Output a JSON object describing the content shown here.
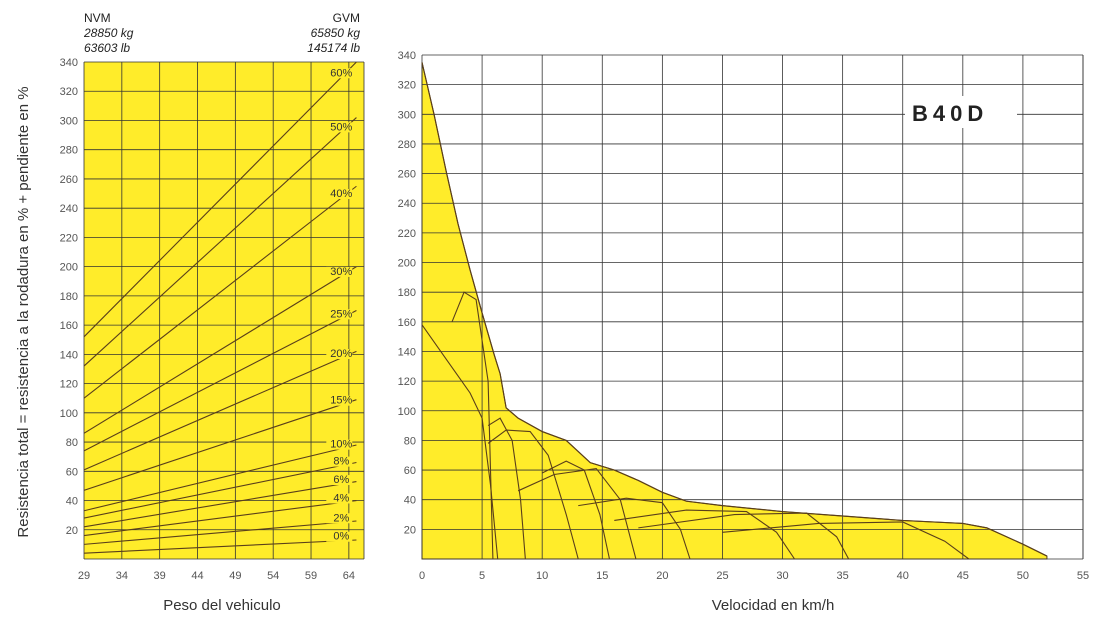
{
  "y_axis_label": "Resistencia total = resistencia a la rodadura en % + pendiente en %",
  "nvm": {
    "label": "NVM",
    "kg": "28850 kg",
    "lb": "63603 lb"
  },
  "gvm": {
    "label": "GVM",
    "kg": "65850 kg",
    "lb": "145174 lb"
  },
  "model": "B40D",
  "colors": {
    "fill": "#ffec2a",
    "line": "#5a3f1a",
    "grid": "#333333",
    "ink": "#333333"
  },
  "chart_data": [
    {
      "type": "line",
      "xlabel": "Peso del vehiculo",
      "ylabel": "Resistencia total = resistencia a la rodadura en % + pendiente en %",
      "xlim": [
        29,
        66
      ],
      "ylim": [
        0,
        340
      ],
      "x_ticks": [
        "29",
        "34",
        "39",
        "44",
        "49",
        "54",
        "59",
        "64"
      ],
      "y_ticks": [
        "20",
        "40",
        "60",
        "80",
        "100",
        "120",
        "140",
        "160",
        "180",
        "200",
        "220",
        "240",
        "260",
        "280",
        "300",
        "320",
        "340"
      ],
      "background": "yellow",
      "grid": true,
      "series": [
        {
          "name": "60%",
          "x": [
            29,
            65
          ],
          "y": [
            152,
            340
          ]
        },
        {
          "name": "50%",
          "x": [
            29,
            65
          ],
          "y": [
            132,
            302
          ]
        },
        {
          "name": "40%",
          "x": [
            29,
            65
          ],
          "y": [
            110,
            255
          ]
        },
        {
          "name": "30%",
          "x": [
            29,
            65
          ],
          "y": [
            86,
            200
          ]
        },
        {
          "name": "25%",
          "x": [
            29,
            65
          ],
          "y": [
            74,
            170
          ]
        },
        {
          "name": "20%",
          "x": [
            29,
            65
          ],
          "y": [
            61,
            142
          ]
        },
        {
          "name": "15%",
          "x": [
            29,
            65
          ],
          "y": [
            47,
            109
          ]
        },
        {
          "name": "10%",
          "x": [
            29,
            65
          ],
          "y": [
            33,
            78
          ]
        },
        {
          "name": "8%",
          "x": [
            29,
            65
          ],
          "y": [
            28,
            66
          ]
        },
        {
          "name": "6%",
          "x": [
            29,
            65
          ],
          "y": [
            22,
            53
          ]
        },
        {
          "name": "4%",
          "x": [
            29,
            65
          ],
          "y": [
            16,
            40
          ]
        },
        {
          "name": "2%",
          "x": [
            29,
            65
          ],
          "y": [
            10,
            26
          ]
        },
        {
          "name": "0%",
          "x": [
            29,
            65
          ],
          "y": [
            4,
            13
          ]
        }
      ]
    },
    {
      "type": "area",
      "xlabel": "Velocidad en km/h",
      "xlim": [
        0,
        55
      ],
      "ylim": [
        0,
        340
      ],
      "x_ticks": [
        "0",
        "5",
        "10",
        "15",
        "20",
        "25",
        "30",
        "35",
        "40",
        "45",
        "50",
        "55"
      ],
      "y_ticks": [
        "20",
        "40",
        "60",
        "80",
        "100",
        "120",
        "140",
        "160",
        "180",
        "200",
        "220",
        "240",
        "260",
        "280",
        "300",
        "320",
        "340"
      ],
      "grid": true,
      "envelope": {
        "x": [
          0,
          1,
          2,
          3,
          4,
          5,
          6,
          6.5,
          7,
          8,
          10,
          12,
          14,
          16,
          18,
          20,
          22,
          25,
          30,
          35,
          40,
          45,
          47,
          50,
          52
        ],
        "y": [
          335,
          300,
          262,
          226,
          195,
          166,
          138,
          125,
          102,
          95,
          86,
          80,
          65,
          60,
          53,
          45,
          39,
          36,
          32,
          29,
          26,
          24,
          21,
          10,
          2
        ]
      },
      "curves": [
        {
          "x": [
            0,
            2,
            4,
            5,
            5.7,
            6.3
          ],
          "y": [
            158,
            135,
            112,
            95,
            50,
            0
          ]
        },
        {
          "x": [
            2.5,
            3.5,
            4.5,
            5.5,
            5.9
          ],
          "y": [
            160,
            180,
            175,
            120,
            0
          ]
        },
        {
          "x": [
            5.5,
            6.5,
            7.5,
            8.2,
            8.6
          ],
          "y": [
            90,
            95,
            80,
            40,
            0
          ]
        },
        {
          "x": [
            5.5,
            7,
            9,
            10.5,
            12,
            13
          ],
          "y": [
            78,
            87,
            86,
            70,
            30,
            0
          ]
        },
        {
          "x": [
            10,
            12,
            13.5,
            14.8,
            15.6
          ],
          "y": [
            58,
            66,
            60,
            30,
            0
          ]
        },
        {
          "x": [
            8,
            11,
            14.5,
            16.5,
            17.8
          ],
          "y": [
            46,
            57,
            61,
            40,
            0
          ]
        },
        {
          "x": [
            13,
            17,
            20,
            21.5,
            22.3
          ],
          "y": [
            36,
            41,
            38,
            20,
            0
          ]
        },
        {
          "x": [
            16,
            22,
            27,
            29.5,
            31
          ],
          "y": [
            26,
            33,
            32,
            18,
            0
          ]
        },
        {
          "x": [
            18,
            26,
            32,
            34.5,
            35.5
          ],
          "y": [
            21,
            30,
            31,
            15,
            0
          ]
        },
        {
          "x": [
            25,
            33,
            40,
            43.5,
            45.5
          ],
          "y": [
            18,
            24,
            25,
            12,
            0
          ]
        }
      ]
    }
  ]
}
